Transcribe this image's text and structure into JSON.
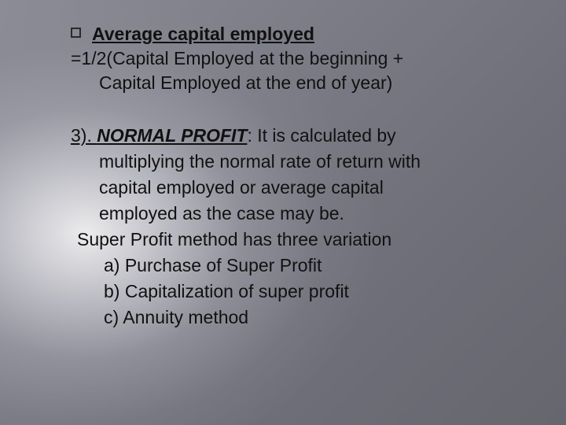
{
  "slide": {
    "background": {
      "gradient_center": "#ffffff",
      "gradient_mid": "#bebecd",
      "gradient_outer": "#6e6e78",
      "text_color": "#111111"
    },
    "typography": {
      "font_family": "Arial",
      "body_fontsize_pt": 17,
      "line_height": 1.35
    },
    "block1": {
      "heading": "Average capital employed",
      "eq_line1": "=1/2(Capital Employed at the beginning +",
      "eq_line2": "Capital Employed at the end of year)"
    },
    "block2": {
      "num_label": "3). ",
      "heading": "NORMAL PROFIT",
      "colon": ": ",
      "body_l1": "It is calculated by",
      "body_l2": "multiplying the normal rate of return with",
      "body_l3": "capital employed or average capital",
      "body_l4": "employed as the case may be.",
      "super_line": "Super Profit method has three variation",
      "items": {
        "a": "a) Purchase of Super Profit",
        "b": "b) Capitalization of super profit",
        "c": "c) Annuity  method"
      }
    }
  }
}
